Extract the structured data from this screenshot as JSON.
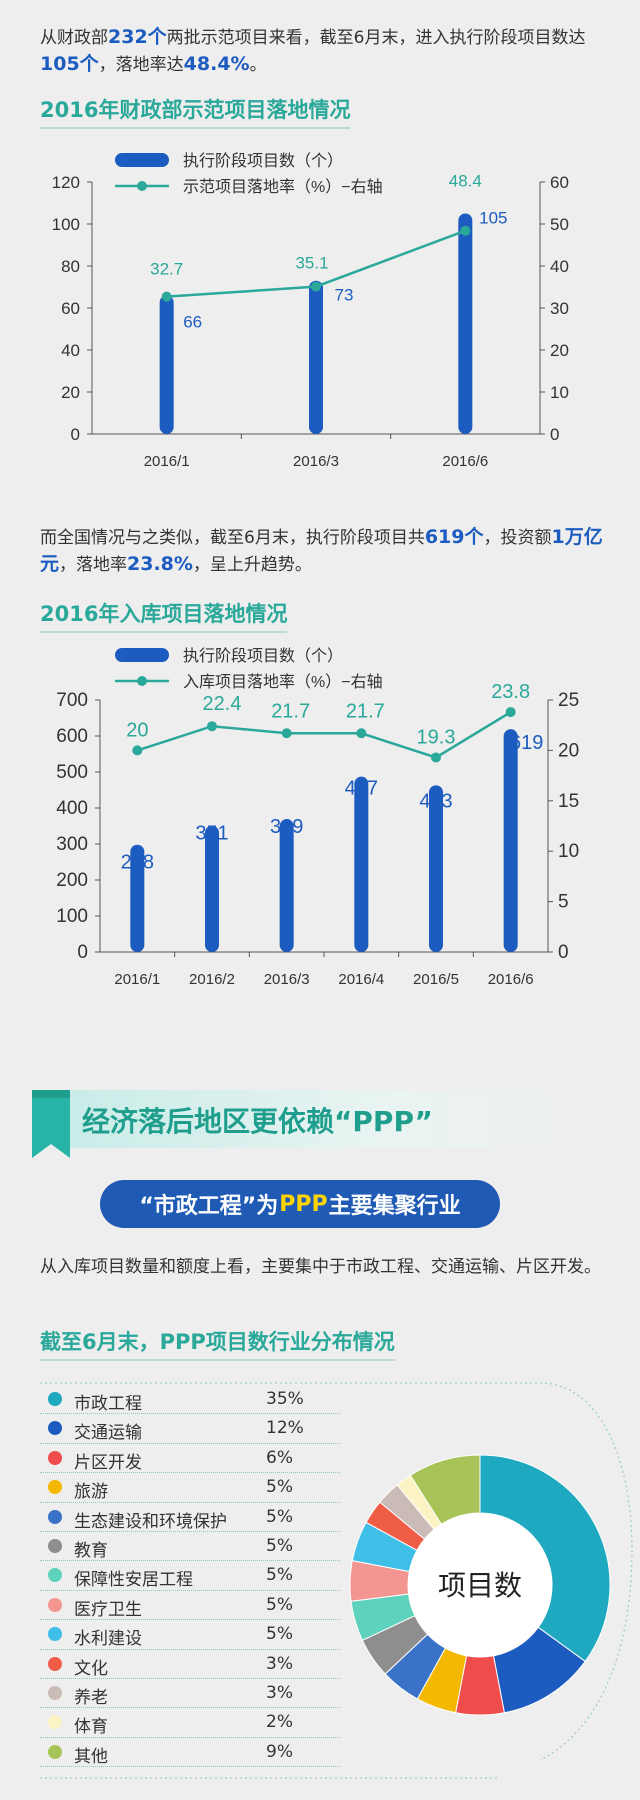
{
  "intro_text": {
    "p1": "从财政部",
    "b1": "232个",
    "p2": "两批示范项目来看，截至6月末，进入执行阶段项目数达",
    "b2": "105个",
    "p3": "，落地率达",
    "b3": "48.4%",
    "p4": "。"
  },
  "chart1_title": "2016年财政部示范项目落地情况",
  "mid_text": {
    "p1": "而全国情况与之类似，截至6月末，执行阶段项目共",
    "b1": "619个",
    "p2": "，投资额",
    "b2": "1万亿元",
    "p3": "，落地率",
    "b3": "23.8%",
    "p4": "，呈上升趋势。"
  },
  "chart2_title": "2016年入库项目落地情况",
  "banner_title": "经济落后地区更依赖“PPP”",
  "pill": {
    "p1": "“市政工程”为",
    "hl": "PPP",
    "p2": "主要集聚行业"
  },
  "industry_text": "从入库项目数量和额度上看，主要集中于市政工程、交通运输、片区开发。",
  "chart3_title": "截至6月末，PPP项目数行业分布情况",
  "colors": {
    "bar": "#1c5cc0",
    "line": "#2aa89a",
    "value_label": "#1c5cc0"
  },
  "chart_data": [
    {
      "type": "bar",
      "categories": [
        "2016/1",
        "2016/3",
        "2016/6"
      ],
      "series": [
        {
          "name": "执行阶段项目数（个）",
          "type": "bar",
          "axis": "left",
          "values": [
            66,
            73,
            105
          ]
        },
        {
          "name": "示范项目落地率（%）−右轴",
          "type": "line",
          "axis": "right",
          "values": [
            32.7,
            35.1,
            48.4
          ]
        }
      ],
      "y_left": {
        "ticks": [
          "0",
          "20",
          "40",
          "60",
          "80",
          "100",
          "120"
        ],
        "range": [
          0,
          120
        ]
      },
      "y_right": {
        "ticks": [
          "0",
          "10",
          "20",
          "30",
          "40",
          "50",
          "60"
        ],
        "range": [
          0,
          60
        ]
      },
      "legend": "top-left",
      "grid": false
    },
    {
      "type": "bar",
      "categories": [
        "2016/1",
        "2016/2",
        "2016/3",
        "2016/4",
        "2016/5",
        "2016/6"
      ],
      "series": [
        {
          "name": "执行阶段项目数（个）",
          "type": "bar",
          "axis": "left",
          "values": [
            298,
            351,
            369,
            487,
            463,
            619
          ]
        },
        {
          "name": "入库项目落地率（%）−右轴",
          "type": "line",
          "axis": "right",
          "values": [
            20,
            22.4,
            21.7,
            21.7,
            19.3,
            23.8
          ]
        }
      ],
      "y_left": {
        "ticks": [
          "0",
          "100",
          "200",
          "300",
          "400",
          "500",
          "600",
          "700"
        ],
        "range": [
          0,
          700
        ]
      },
      "y_right": {
        "ticks": [
          "0",
          "5",
          "10",
          "15",
          "20",
          "25"
        ],
        "range": [
          0,
          25
        ]
      },
      "legend": "top-left",
      "grid": false
    },
    {
      "type": "pie",
      "center_label": "项目数",
      "legend": "left",
      "slices": [
        {
          "label": "市政工程",
          "value": 35,
          "text": "35%",
          "color": "#1fa9c0"
        },
        {
          "label": "交通运输",
          "value": 12,
          "text": "12%",
          "color": "#1c5cc0"
        },
        {
          "label": "片区开发",
          "value": 6,
          "text": "6%",
          "color": "#ef4c4c"
        },
        {
          "label": "旅游",
          "value": 5,
          "text": "5%",
          "color": "#f5b800"
        },
        {
          "label": "生态建设和环境保护",
          "value": 5,
          "text": "5%",
          "color": "#3a72c8"
        },
        {
          "label": "教育",
          "value": 5,
          "text": "5%",
          "color": "#8e8e8e"
        },
        {
          "label": "保障性安居工程",
          "value": 5,
          "text": "5%",
          "color": "#5fd2be"
        },
        {
          "label": "医疗卫生",
          "value": 5,
          "text": "5%",
          "color": "#f39591"
        },
        {
          "label": "水利建设",
          "value": 5,
          "text": "5%",
          "color": "#3fbfe8"
        },
        {
          "label": "文化",
          "value": 3,
          "text": "3%",
          "color": "#f05d47"
        },
        {
          "label": "养老",
          "value": 3,
          "text": "3%",
          "color": "#cbbbb6"
        },
        {
          "label": "体育",
          "value": 2,
          "text": "2%",
          "color": "#fcf3c4"
        },
        {
          "label": "其他",
          "value": 9,
          "text": "9%",
          "color": "#a8c459"
        }
      ]
    }
  ]
}
